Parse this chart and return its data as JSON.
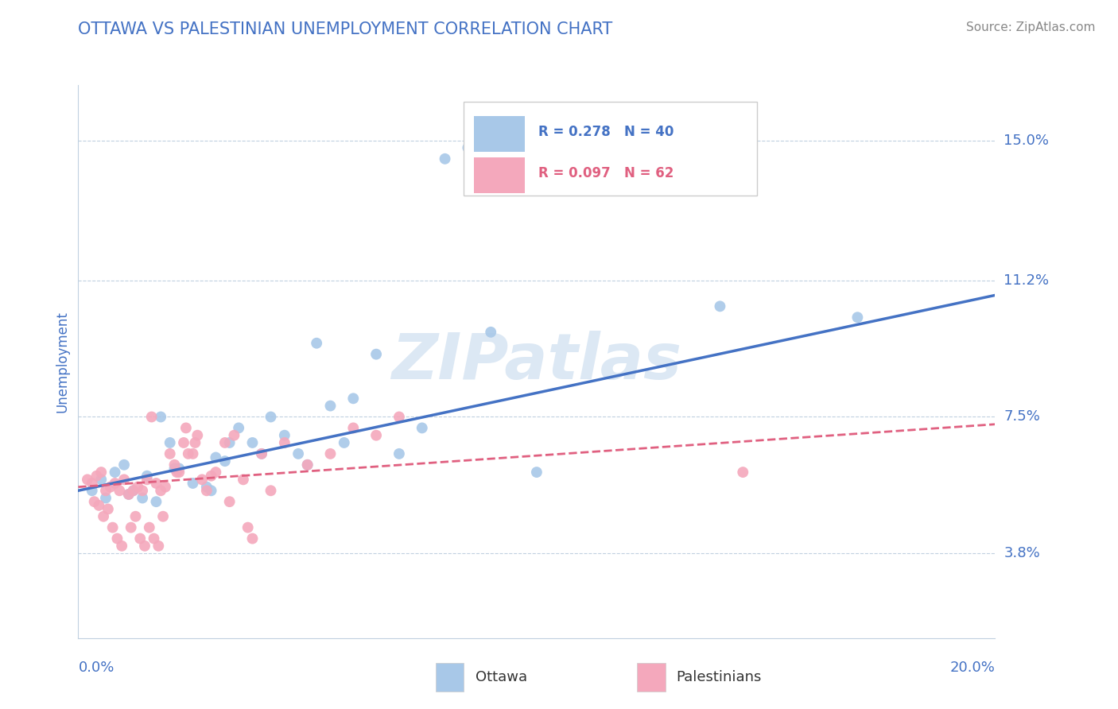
{
  "title": "OTTAWA VS PALESTINIAN UNEMPLOYMENT CORRELATION CHART",
  "source": "Source: ZipAtlas.com",
  "ylabel_label": "Unemployment",
  "y_ticks": [
    3.8,
    7.5,
    11.2,
    15.0
  ],
  "y_tick_labels": [
    "3.8%",
    "7.5%",
    "11.2%",
    "15.0%"
  ],
  "x_min": 0.0,
  "x_max": 20.0,
  "y_min": 1.5,
  "y_max": 16.5,
  "ottawa_R": 0.278,
  "ottawa_N": 40,
  "palestinian_R": 0.097,
  "palestinian_N": 62,
  "ottawa_color": "#a8c8e8",
  "palestinian_color": "#f4a8bc",
  "ottawa_line_color": "#4472c4",
  "palestinian_line_color": "#e06080",
  "title_color": "#4472c4",
  "axis_label_color": "#4472c4",
  "watermark_color": "#dce8f4",
  "grid_color": "#c0d0e0",
  "legend_ottawa_label": "Ottawa",
  "legend_palestinian_label": "Palestinians",
  "ottawa_scatter_x": [
    0.3,
    0.5,
    0.6,
    0.8,
    1.0,
    1.1,
    1.2,
    1.4,
    1.5,
    1.7,
    1.8,
    2.0,
    2.1,
    2.2,
    2.5,
    2.8,
    2.9,
    3.0,
    3.2,
    3.3,
    3.5,
    3.8,
    4.0,
    4.2,
    4.5,
    4.8,
    5.0,
    5.2,
    5.5,
    5.8,
    6.0,
    6.5,
    7.0,
    7.5,
    8.0,
    8.5,
    9.0,
    10.0,
    14.0,
    17.0
  ],
  "ottawa_scatter_y": [
    5.5,
    5.8,
    5.3,
    6.0,
    6.2,
    5.4,
    5.5,
    5.3,
    5.9,
    5.2,
    7.5,
    6.8,
    6.1,
    6.1,
    5.7,
    5.6,
    5.5,
    6.4,
    6.3,
    6.8,
    7.2,
    6.8,
    6.5,
    7.5,
    7.0,
    6.5,
    6.2,
    9.5,
    7.8,
    6.8,
    8.0,
    9.2,
    6.5,
    7.2,
    14.5,
    14.8,
    9.8,
    6.0,
    10.5,
    10.2
  ],
  "pal_scatter_x": [
    0.2,
    0.3,
    0.35,
    0.4,
    0.45,
    0.5,
    0.55,
    0.6,
    0.65,
    0.7,
    0.75,
    0.8,
    0.85,
    0.9,
    0.95,
    1.0,
    1.1,
    1.15,
    1.2,
    1.25,
    1.3,
    1.35,
    1.4,
    1.45,
    1.5,
    1.55,
    1.6,
    1.65,
    1.7,
    1.75,
    1.8,
    1.85,
    1.9,
    2.0,
    2.1,
    2.15,
    2.2,
    2.3,
    2.35,
    2.4,
    2.5,
    2.55,
    2.6,
    2.7,
    2.8,
    2.9,
    3.0,
    3.2,
    3.3,
    3.4,
    3.6,
    3.7,
    3.8,
    4.0,
    4.2,
    4.5,
    5.0,
    5.5,
    6.0,
    6.5,
    7.0,
    14.5
  ],
  "pal_scatter_y": [
    5.8,
    5.7,
    5.2,
    5.9,
    5.1,
    6.0,
    4.8,
    5.5,
    5.0,
    5.6,
    4.5,
    5.7,
    4.2,
    5.5,
    4.0,
    5.8,
    5.4,
    4.5,
    5.5,
    4.8,
    5.6,
    4.2,
    5.5,
    4.0,
    5.8,
    4.5,
    7.5,
    4.2,
    5.7,
    4.0,
    5.5,
    4.8,
    5.6,
    6.5,
    6.2,
    6.0,
    6.0,
    6.8,
    7.2,
    6.5,
    6.5,
    6.8,
    7.0,
    5.8,
    5.5,
    5.9,
    6.0,
    6.8,
    5.2,
    7.0,
    5.8,
    4.5,
    4.2,
    6.5,
    5.5,
    6.8,
    6.2,
    6.5,
    7.2,
    7.0,
    7.5,
    6.0
  ],
  "ottawa_line_start_y": 5.5,
  "ottawa_line_end_y": 10.8,
  "pal_line_start_y": 5.6,
  "pal_line_end_y": 7.3
}
